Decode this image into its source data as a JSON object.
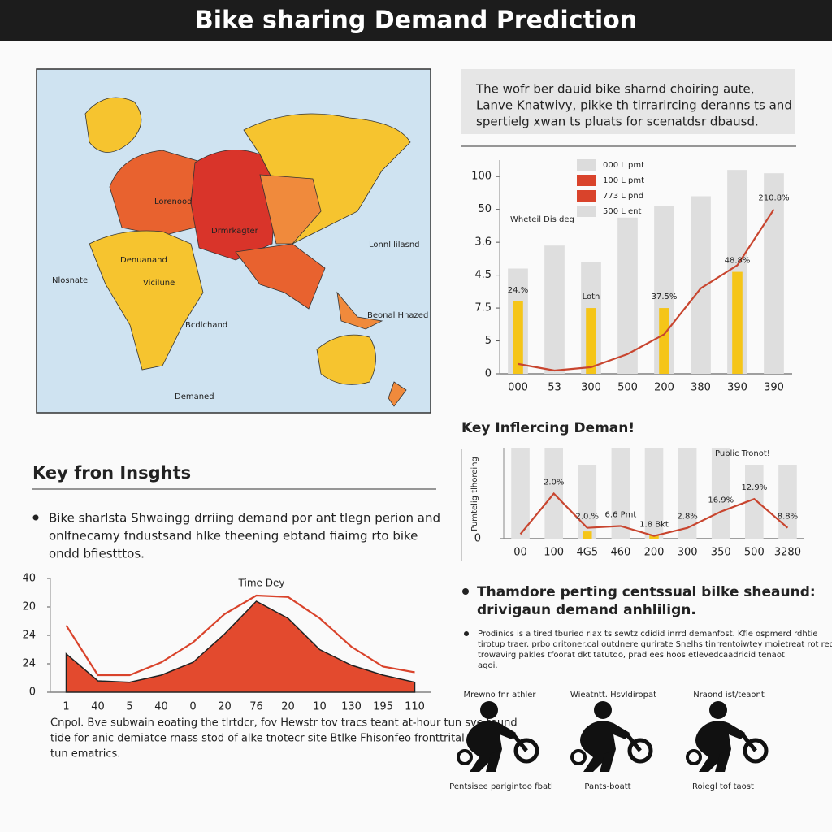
{
  "header": {
    "title": "Bike sharing Demand Prediction"
  },
  "map": {
    "labels": [
      "Lorenood",
      "Drmrkagter",
      "Denuanand",
      "Nlosnate",
      "Vicilune",
      "Bcdlchand",
      "Demaned",
      "Lonnl lilasnd",
      "Beonal Hnazed"
    ]
  },
  "description": {
    "lines": [
      "The wofr ber dauid bike sharnd choiring aute,",
      "Lanve Knatwivy, pikke th tirrarircing deranns ts and",
      "spertielg xwan ts pluats for scenatdsr dbausd."
    ]
  },
  "chart_data": [
    {
      "type": "bar",
      "subtitle": "Wheteil Dis deg",
      "categories": [
        "000",
        "53",
        "300",
        "500",
        "200",
        "380",
        "390",
        "390"
      ],
      "ylim": [
        0,
        6.5
      ],
      "yticks": [
        0,
        {
          "value": 1,
          "label": "5"
        },
        {
          "value": 2,
          "label": "7.5"
        },
        {
          "value": 3,
          "label": "4.5"
        },
        {
          "value": 4,
          "label": "3.6"
        },
        {
          "value": 5,
          "label": "50"
        },
        {
          "value": 6,
          "label": "100"
        }
      ],
      "legend": [
        {
          "label": "000 L pmt",
          "color": "#dcdcdc"
        },
        {
          "label": "100 L pmt",
          "color": "#d9432b"
        },
        {
          "label": "773 L pnd",
          "color": "#d9432b"
        },
        {
          "label": "500 L ent",
          "color": "#dcdcdc"
        }
      ],
      "series": [
        {
          "type": "bar",
          "color": "#dedede",
          "values": [
            3.2,
            3.9,
            3.4,
            4.75,
            5.1,
            5.4,
            6.2,
            6.1
          ]
        },
        {
          "type": "bar",
          "color": "#f5c518",
          "values": [
            2.2,
            null,
            2.0,
            null,
            2.0,
            null,
            3.1,
            null
          ]
        },
        {
          "type": "line",
          "color": "#c8452f",
          "values": [
            0.3,
            0.1,
            0.2,
            0.6,
            1.2,
            2.6,
            3.3,
            5.0
          ]
        }
      ],
      "annotations": [
        "24.%",
        "Lotn",
        "37.5%",
        "48.8%",
        "210.8%"
      ]
    },
    {
      "type": "bar",
      "title": "Key Inflercing Deman!",
      "subtitle": "Public Tronot!",
      "ylabel": "Pumtelig tlhoreing",
      "categories": [
        "00",
        "100",
        "4G5",
        "460",
        "200",
        "300",
        "350",
        "500",
        "3280"
      ],
      "ylim": [
        0,
        10
      ],
      "yticks": [
        0
      ],
      "series": [
        {
          "type": "bar",
          "color": "#e0e0e0",
          "values": [
            10,
            10,
            8.2,
            10,
            10,
            10,
            10,
            8.2,
            8.2
          ]
        },
        {
          "type": "bar",
          "color": "#f5c518",
          "values": [
            null,
            null,
            0.8,
            null,
            0.4,
            null,
            null,
            null,
            null
          ]
        },
        {
          "type": "line",
          "color": "#c8452f",
          "values": [
            0.5,
            5,
            1.2,
            1.4,
            0.3,
            1.2,
            3,
            4.4,
            1.2
          ]
        }
      ],
      "annotations": [
        "2.0%",
        "2.0.%",
        "6.6 Pmt",
        "1.8 Bkt",
        "2.8%",
        "16.9%",
        "12.9%",
        "8.8%"
      ]
    },
    {
      "type": "area",
      "title": "Time Dey",
      "categories": [
        "1",
        "40",
        "5",
        "40",
        "0",
        "20",
        "76",
        "20",
        "10",
        "130",
        "195",
        "110"
      ],
      "ylim": [
        0,
        4
      ],
      "yticks": [
        0,
        {
          "value": 1,
          "label": "24"
        },
        {
          "value": 2,
          "label": "24"
        },
        {
          "value": 3,
          "label": "20"
        },
        {
          "value": 4,
          "label": "40"
        }
      ],
      "series": [
        {
          "type": "area",
          "color": "#e34a2e",
          "values": [
            1.35,
            0.4,
            0.35,
            0.6,
            1.05,
            2.05,
            3.2,
            2.6,
            1.5,
            0.95,
            0.6,
            0.35
          ]
        },
        {
          "type": "line",
          "color": "#d9432b",
          "values": [
            2.35,
            0.6,
            0.6,
            1.05,
            1.75,
            2.75,
            3.4,
            3.35,
            2.6,
            1.6,
            0.9,
            0.7
          ]
        }
      ]
    }
  ],
  "insights": {
    "title": "Key fron Insghts",
    "lines": [
      "Bike sharlsta Shwaingg drriing demand por ant tlegn perion and",
      "onlfnecamy fndustsand hlke theening ebtand fiaimg rto bike",
      "ondd bfiestttos."
    ]
  },
  "footer_note": {
    "lines": [
      "Cnpol. Bve subwain eoating the tlrtdcr, fov Hewstr tov tracs teant at-hour tun sve tound",
      "tide for anic demiatce rnass stod of alke tnotecr site Btlke Fhisonfeo fronttrital bilke",
      "tun ematrics."
    ]
  },
  "factors": {
    "heading": [
      "Thamdore perting centssual bilke sheaund:",
      "drivigaun demand anhlilign."
    ],
    "lines": [
      "Prodinics is a tired tburied riax ts sewtz cdidid inrrd demanfost. Kfle ospmerd rdhtie",
      "tirotup traer. prbo dritoner.cal outdnere gurirate Snelhs tinrrentoiwtey moietreat rot red",
      "trowavirg pakles tfoorat dkt tatutdo, prad ees hoos etlevedcaadricid tenaot",
      "agoi."
    ],
    "icons": [
      {
        "top": "Mrewno fnr athler",
        "bottom": "Pentsisee parigintoo fbatl"
      },
      {
        "top": "Wieatntt. Hsvldiropat",
        "bottom": "Pants-boatt"
      },
      {
        "top": "Nraond ist/teaont",
        "bottom": "Roiegl tof taost"
      }
    ]
  }
}
